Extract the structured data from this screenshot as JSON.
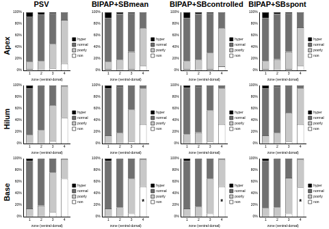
{
  "chart_data": [
    {
      "type": "bar",
      "title": "PSV",
      "subtitle": "Apex",
      "xlabel": "zone (ventral-dorsal)",
      "categories": [
        "1",
        "2",
        "3",
        "4"
      ],
      "stacked": true,
      "legend": "right",
      "grid": false,
      "ylim": [
        0,
        100
      ],
      "yticks": [
        {
          "value": 0,
          "label": "0%"
        },
        {
          "value": 20,
          "label": "20%"
        },
        {
          "value": 40,
          "label": "40%"
        },
        {
          "value": 60,
          "label": "60%"
        },
        {
          "value": 80,
          "label": "80%"
        },
        {
          "value": 100,
          "label": "100%"
        }
      ],
      "series": [
        {
          "name": "non",
          "color": "#ffffff",
          "values": [
            2,
            1,
            3,
            12
          ]
        },
        {
          "name": "poorly",
          "color": "#c8c8c8",
          "values": [
            13,
            15,
            42,
            75
          ]
        },
        {
          "name": "normal",
          "color": "#707070",
          "values": [
            77,
            80,
            53,
            13
          ]
        },
        {
          "name": "hyper",
          "color": "#000000",
          "values": [
            8,
            4,
            2,
            0
          ]
        }
      ]
    },
    {
      "type": "bar",
      "title": "BIPAP+SBmean",
      "xlabel": "zone (ventral-dorsal)",
      "categories": [
        "1",
        "2",
        "3",
        "4"
      ],
      "stacked": true,
      "legend": "right",
      "grid": false,
      "ylim": [
        0,
        100
      ],
      "yticks": [
        {
          "value": 0,
          "label": "0%"
        },
        {
          "value": 20,
          "label": "20%"
        },
        {
          "value": 40,
          "label": "40%"
        },
        {
          "value": 60,
          "label": "60%"
        },
        {
          "value": 80,
          "label": "80%"
        },
        {
          "value": 100,
          "label": "100%"
        }
      ],
      "series": [
        {
          "name": "non",
          "color": "#ffffff",
          "values": [
            2,
            1,
            2,
            8
          ]
        },
        {
          "name": "poorly",
          "color": "#c8c8c8",
          "values": [
            13,
            17,
            30,
            65
          ]
        },
        {
          "name": "normal",
          "color": "#707070",
          "values": [
            75,
            79,
            66,
            27
          ]
        },
        {
          "name": "hyper",
          "color": "#000000",
          "values": [
            10,
            3,
            2,
            0
          ]
        }
      ]
    },
    {
      "type": "bar",
      "title": "BIPAP+SBcontrolled",
      "xlabel": "zone (ventral-dorsal)",
      "categories": [
        "1",
        "2",
        "3",
        "4"
      ],
      "stacked": true,
      "legend": "right",
      "grid": false,
      "ylim": [
        0,
        100
      ],
      "yticks": [
        {
          "value": 0,
          "label": "0%"
        },
        {
          "value": 20,
          "label": "20%"
        },
        {
          "value": 40,
          "label": "40%"
        },
        {
          "value": 60,
          "label": "60%"
        },
        {
          "value": 80,
          "label": "80%"
        },
        {
          "value": 100,
          "label": "100%"
        }
      ],
      "series": [
        {
          "name": "non",
          "color": "#ffffff",
          "values": [
            2,
            1,
            2,
            7
          ]
        },
        {
          "name": "poorly",
          "color": "#c8c8c8",
          "values": [
            14,
            17,
            28,
            66
          ]
        },
        {
          "name": "normal",
          "color": "#707070",
          "values": [
            74,
            79,
            68,
            27
          ]
        },
        {
          "name": "hyper",
          "color": "#000000",
          "values": [
            10,
            3,
            2,
            0
          ]
        }
      ]
    },
    {
      "type": "bar",
      "title": "BIPAP+SBspont",
      "xlabel": "zone (ventral-dorsal)",
      "categories": [
        "1",
        "2",
        "3",
        "4"
      ],
      "stacked": true,
      "legend": "right",
      "grid": false,
      "ylim": [
        0,
        100
      ],
      "yticks": [
        {
          "value": 0,
          "label": "0%"
        },
        {
          "value": 20,
          "label": "20%"
        },
        {
          "value": 40,
          "label": "40%"
        },
        {
          "value": 60,
          "label": "60%"
        },
        {
          "value": 80,
          "label": "80%"
        },
        {
          "value": 100,
          "label": "100%"
        }
      ],
      "series": [
        {
          "name": "non",
          "color": "#ffffff",
          "values": [
            2,
            1,
            2,
            8
          ]
        },
        {
          "name": "poorly",
          "color": "#c8c8c8",
          "values": [
            14,
            18,
            30,
            66
          ]
        },
        {
          "name": "normal",
          "color": "#707070",
          "values": [
            74,
            78,
            66,
            26
          ]
        },
        {
          "name": "hyper",
          "color": "#000000",
          "values": [
            10,
            3,
            2,
            0
          ]
        }
      ]
    },
    {
      "type": "bar",
      "subtitle": "Hilum",
      "xlabel": "zone (ventral-dorsal)",
      "categories": [
        "1",
        "2",
        "3",
        "4"
      ],
      "stacked": true,
      "legend": "right",
      "grid": false,
      "ylim": [
        0,
        100
      ],
      "yticks": [
        {
          "value": 0,
          "label": "0%"
        },
        {
          "value": 20,
          "label": "20%"
        },
        {
          "value": 40,
          "label": "40%"
        },
        {
          "value": 60,
          "label": "60%"
        },
        {
          "value": 80,
          "label": "80%"
        },
        {
          "value": 100,
          "label": "100%"
        }
      ],
      "series": [
        {
          "name": "non",
          "color": "#ffffff",
          "values": [
            1,
            1,
            4,
            44
          ]
        },
        {
          "name": "poorly",
          "color": "#c8c8c8",
          "values": [
            14,
            22,
            62,
            54
          ]
        },
        {
          "name": "normal",
          "color": "#707070",
          "values": [
            80,
            76,
            34,
            2
          ]
        },
        {
          "name": "hyper",
          "color": "#000000",
          "values": [
            5,
            1,
            0,
            0
          ]
        }
      ]
    },
    {
      "type": "bar",
      "xlabel": "zone (ventral-dorsal)",
      "categories": [
        "1",
        "2",
        "3",
        "4"
      ],
      "stacked": true,
      "legend": "right",
      "grid": false,
      "ylim": [
        0,
        100
      ],
      "yticks": [
        {
          "value": 0,
          "label": "0%"
        },
        {
          "value": 20,
          "label": "20%"
        },
        {
          "value": 40,
          "label": "40%"
        },
        {
          "value": 60,
          "label": "60%"
        },
        {
          "value": 80,
          "label": "80%"
        },
        {
          "value": 100,
          "label": "100%"
        }
      ],
      "series": [
        {
          "name": "non",
          "color": "#ffffff",
          "values": [
            1,
            1,
            3,
            33
          ]
        },
        {
          "name": "poorly",
          "color": "#c8c8c8",
          "values": [
            13,
            17,
            55,
            62
          ]
        },
        {
          "name": "normal",
          "color": "#707070",
          "values": [
            81,
            80,
            42,
            5
          ]
        },
        {
          "name": "hyper",
          "color": "#000000",
          "values": [
            5,
            2,
            0,
            0
          ]
        }
      ]
    },
    {
      "type": "bar",
      "xlabel": "zone (ventral-dorsal)",
      "categories": [
        "1",
        "2",
        "3",
        "4"
      ],
      "stacked": true,
      "legend": "right",
      "grid": false,
      "ylim": [
        0,
        100
      ],
      "yticks": [
        {
          "value": 0,
          "label": "0%"
        },
        {
          "value": 20,
          "label": "20%"
        },
        {
          "value": 40,
          "label": "40%"
        },
        {
          "value": 60,
          "label": "60%"
        },
        {
          "value": 80,
          "label": "80%"
        },
        {
          "value": 100,
          "label": "100%"
        }
      ],
      "series": [
        {
          "name": "non",
          "color": "#ffffff",
          "values": [
            1,
            1,
            3,
            33
          ]
        },
        {
          "name": "poorly",
          "color": "#c8c8c8",
          "values": [
            15,
            18,
            54,
            62
          ]
        },
        {
          "name": "normal",
          "color": "#707070",
          "values": [
            80,
            79,
            43,
            5
          ]
        },
        {
          "name": "hyper",
          "color": "#000000",
          "values": [
            4,
            2,
            0,
            0
          ]
        }
      ]
    },
    {
      "type": "bar",
      "xlabel": "zone (ventral-dorsal)",
      "categories": [
        "1",
        "2",
        "3",
        "4"
      ],
      "stacked": true,
      "legend": "right",
      "grid": false,
      "ylim": [
        0,
        100
      ],
      "yticks": [
        {
          "value": 0,
          "label": "0%"
        },
        {
          "value": 20,
          "label": "20%"
        },
        {
          "value": 40,
          "label": "40%"
        },
        {
          "value": 60,
          "label": "60%"
        },
        {
          "value": 80,
          "label": "80%"
        },
        {
          "value": 100,
          "label": "100%"
        }
      ],
      "series": [
        {
          "name": "non",
          "color": "#ffffff",
          "values": [
            1,
            1,
            3,
            33
          ]
        },
        {
          "name": "poorly",
          "color": "#c8c8c8",
          "values": [
            13,
            17,
            50,
            62
          ]
        },
        {
          "name": "normal",
          "color": "#707070",
          "values": [
            81,
            80,
            47,
            5
          ]
        },
        {
          "name": "hyper",
          "color": "#000000",
          "values": [
            5,
            2,
            0,
            0
          ]
        }
      ]
    },
    {
      "type": "bar",
      "subtitle": "Base",
      "xlabel": "zone (ventral-dorsal)",
      "categories": [
        "1",
        "2",
        "3",
        "4"
      ],
      "stacked": true,
      "legend": "right",
      "grid": false,
      "ylim": [
        0,
        100
      ],
      "yticks": [
        {
          "value": 0,
          "label": "0%"
        },
        {
          "value": 20,
          "label": "20%"
        },
        {
          "value": 40,
          "label": "40%"
        },
        {
          "value": 60,
          "label": "60%"
        },
        {
          "value": 80,
          "label": "80%"
        },
        {
          "value": 100,
          "label": "100%"
        }
      ],
      "series": [
        {
          "name": "non",
          "color": "#ffffff",
          "values": [
            1,
            1,
            8,
            65
          ]
        },
        {
          "name": "poorly",
          "color": "#c8c8c8",
          "values": [
            13,
            18,
            68,
            34
          ]
        },
        {
          "name": "normal",
          "color": "#707070",
          "values": [
            82,
            80,
            24,
            1
          ]
        },
        {
          "name": "hyper",
          "color": "#000000",
          "values": [
            4,
            1,
            0,
            0
          ]
        }
      ]
    },
    {
      "type": "bar",
      "xlabel": "zone (ventral-dorsal)",
      "categories": [
        "1",
        "2",
        "3",
        "4"
      ],
      "stacked": true,
      "legend": "right",
      "grid": false,
      "ylim": [
        0,
        100
      ],
      "yticks": [
        {
          "value": 0,
          "label": "0%"
        },
        {
          "value": 20,
          "label": "20%"
        },
        {
          "value": 40,
          "label": "40%"
        },
        {
          "value": 60,
          "label": "60%"
        },
        {
          "value": 80,
          "label": "80%"
        },
        {
          "value": 100,
          "label": "100%"
        }
      ],
      "series": [
        {
          "name": "non",
          "color": "#ffffff",
          "values": [
            1,
            1,
            5,
            52
          ]
        },
        {
          "name": "poorly",
          "color": "#c8c8c8",
          "values": [
            13,
            15,
            60,
            46
          ]
        },
        {
          "name": "normal",
          "color": "#707070",
          "values": [
            82,
            83,
            35,
            2
          ]
        },
        {
          "name": "hyper",
          "color": "#000000",
          "values": [
            4,
            1,
            0,
            0
          ]
        }
      ],
      "annotations": [
        {
          "x": "4",
          "y": 25,
          "text": "*"
        }
      ]
    },
    {
      "type": "bar",
      "xlabel": "zone (ventral-dorsal)",
      "categories": [
        "1",
        "2",
        "3",
        "4"
      ],
      "stacked": true,
      "legend": "right",
      "grid": false,
      "ylim": [
        0,
        100
      ],
      "yticks": [
        {
          "value": 0,
          "label": "0%"
        },
        {
          "value": 20,
          "label": "20%"
        },
        {
          "value": 40,
          "label": "40%"
        },
        {
          "value": 60,
          "label": "60%"
        },
        {
          "value": 80,
          "label": "80%"
        },
        {
          "value": 100,
          "label": "100%"
        }
      ],
      "series": [
        {
          "name": "non",
          "color": "#ffffff",
          "values": [
            1,
            1,
            5,
            52
          ]
        },
        {
          "name": "poorly",
          "color": "#c8c8c8",
          "values": [
            13,
            16,
            60,
            46
          ]
        },
        {
          "name": "normal",
          "color": "#707070",
          "values": [
            82,
            82,
            35,
            2
          ]
        },
        {
          "name": "hyper",
          "color": "#000000",
          "values": [
            4,
            1,
            0,
            0
          ]
        }
      ],
      "annotations": [
        {
          "x": "4",
          "y": 25,
          "text": "*"
        }
      ]
    },
    {
      "type": "bar",
      "xlabel": "zone (ventral-dorsal)",
      "categories": [
        "1",
        "2",
        "3",
        "4"
      ],
      "stacked": true,
      "legend": "right",
      "grid": false,
      "ylim": [
        0,
        100
      ],
      "yticks": [
        {
          "value": 0,
          "label": "0%"
        },
        {
          "value": 20,
          "label": "20%"
        },
        {
          "value": 40,
          "label": "40%"
        },
        {
          "value": 60,
          "label": "60%"
        },
        {
          "value": 80,
          "label": "80%"
        },
        {
          "value": 100,
          "label": "100%"
        }
      ],
      "series": [
        {
          "name": "non",
          "color": "#ffffff",
          "values": [
            1,
            1,
            5,
            50
          ]
        },
        {
          "name": "poorly",
          "color": "#c8c8c8",
          "values": [
            14,
            15,
            62,
            48
          ]
        },
        {
          "name": "normal",
          "color": "#707070",
          "values": [
            81,
            83,
            33,
            2
          ]
        },
        {
          "name": "hyper",
          "color": "#000000",
          "values": [
            4,
            1,
            0,
            0
          ]
        }
      ],
      "annotations": [
        {
          "x": "4",
          "y": 25,
          "text": "*"
        }
      ]
    }
  ]
}
